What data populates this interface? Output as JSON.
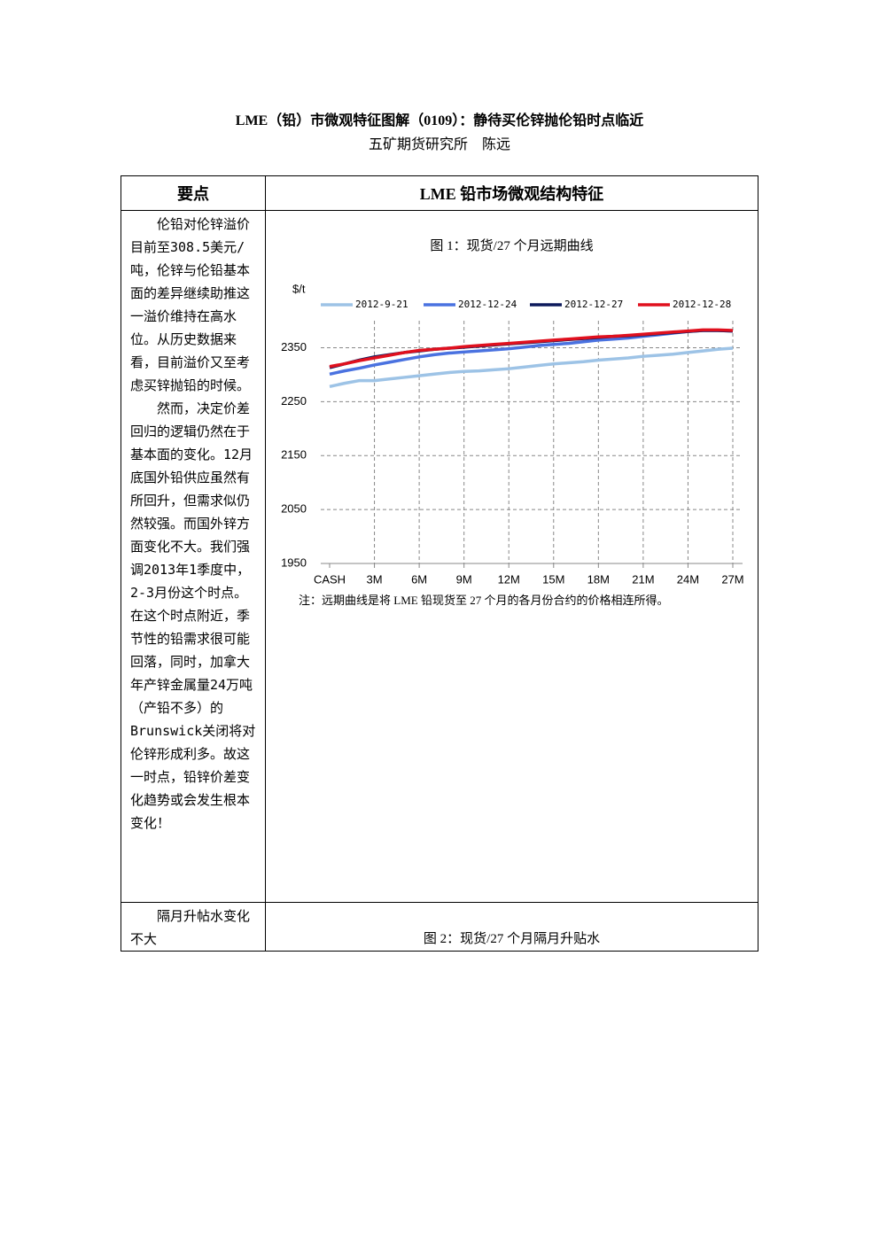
{
  "header": {
    "title": "LME（铅）市微观特征图解（0109）：静待买伦锌抛伦铅时点临近",
    "author": "五矿期货研究所　陈远"
  },
  "table": {
    "columns": [
      "要点",
      "LME 铅市场微观结构特征"
    ],
    "rows": [
      {
        "points": [
          "伦铅对伦锌溢价目前至308.5美元/吨，伦锌与伦铅基本面的差异继续助推这一溢价维持在高水位。从历史数据来看，目前溢价又至考虑买锌抛铅的时候。",
          "然而，决定价差回归的逻辑仍然在于基本面的变化。12月底国外铅供应虽然有所回升，但需求似仍然较强。而国外锌方面变化不大。我们强调2013年1季度中，2-3月份这个时点。在这个时点附近，季节性的铅需求很可能回落，同时，加拿大年产锌金属量24万吨（产铅不多）的Brunswick关闭将对伦锌形成利多。故这一时点，铅锌价差变化趋势或会发生根本变化！"
        ],
        "caption": "图 1：现货/27 个月远期曲线",
        "note": "注：远期曲线是将 LME 铅现货至 27 个月的各月份合约的价格相连所得。"
      },
      {
        "points": [
          "隔月升帖水变化不大"
        ],
        "caption": "图 2：现货/27 个月隔月升贴水"
      }
    ]
  },
  "chart_data": {
    "type": "line",
    "y_label": "$/t",
    "x": [
      0,
      1,
      2,
      3,
      4,
      5,
      6,
      7,
      8,
      9,
      10,
      11,
      12,
      13,
      14,
      15,
      16,
      17,
      18,
      19,
      20,
      21,
      22,
      23,
      24,
      25,
      26,
      27
    ],
    "xlim": [
      0,
      27
    ],
    "xticks": [
      {
        "value": 0,
        "label": "CASH"
      },
      {
        "value": 3,
        "label": "3M"
      },
      {
        "value": 6,
        "label": "6M"
      },
      {
        "value": 9,
        "label": "9M"
      },
      {
        "value": 12,
        "label": "12M"
      },
      {
        "value": 15,
        "label": "15M"
      },
      {
        "value": 18,
        "label": "18M"
      },
      {
        "value": 21,
        "label": "21M"
      },
      {
        "value": 24,
        "label": "24M"
      },
      {
        "value": 27,
        "label": "27M"
      }
    ],
    "ylim": [
      1950,
      2400
    ],
    "yticks": [
      1950,
      2050,
      2150,
      2250,
      2350
    ],
    "grid": true,
    "legend": "top",
    "series": [
      {
        "name": "2012-9-21",
        "color": "#9dc3e6",
        "values": [
          2278,
          2284,
          2289,
          2289,
          2292,
          2295,
          2298,
          2301,
          2304,
          2306,
          2307,
          2309,
          2311,
          2314,
          2317,
          2320,
          2322,
          2324,
          2327,
          2329,
          2331,
          2334,
          2336,
          2338,
          2341,
          2344,
          2347,
          2349
        ]
      },
      {
        "name": "2012-12-24",
        "color": "#4a72e0",
        "values": [
          2301,
          2307,
          2312,
          2318,
          2323,
          2328,
          2333,
          2337,
          2340,
          2342,
          2344,
          2346,
          2348,
          2351,
          2354,
          2356,
          2358,
          2361,
          2364,
          2366,
          2368,
          2371,
          2374,
          2377,
          2380,
          2382,
          2382,
          2381
        ]
      },
      {
        "name": "2012-12-27",
        "color": "#0d1a5c",
        "values": [
          2313,
          2320,
          2327,
          2333,
          2337,
          2341,
          2344,
          2347,
          2349,
          2351,
          2353,
          2355,
          2357,
          2359,
          2361,
          2363,
          2365,
          2367,
          2369,
          2371,
          2372,
          2374,
          2376,
          2378,
          2380,
          2382,
          2382,
          2381
        ]
      },
      {
        "name": "2012-12-28",
        "color": "#e0101e",
        "values": [
          2315,
          2320,
          2326,
          2331,
          2336,
          2341,
          2345,
          2347,
          2349,
          2352,
          2354,
          2356,
          2358,
          2360,
          2362,
          2364,
          2366,
          2368,
          2370,
          2371,
          2373,
          2375,
          2377,
          2379,
          2381,
          2383,
          2383,
          2382
        ]
      }
    ]
  }
}
